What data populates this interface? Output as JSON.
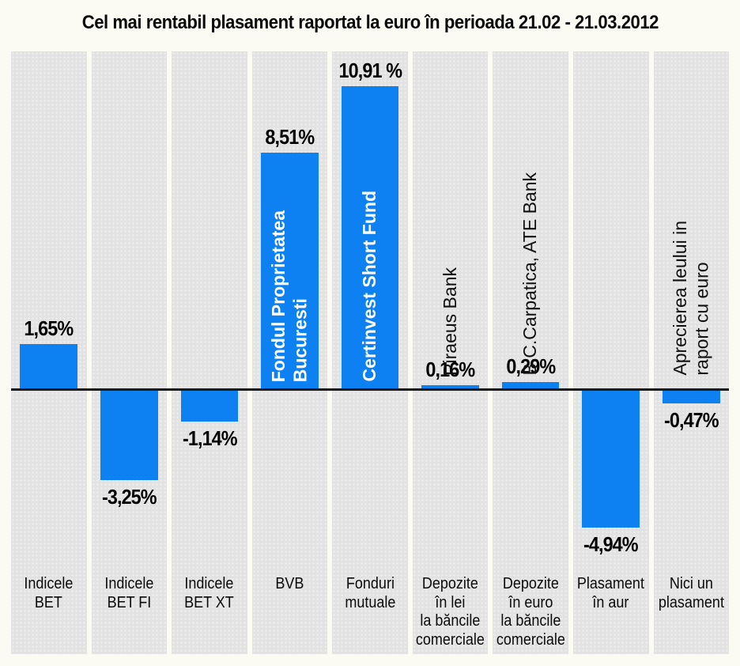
{
  "title": "Cel mai rentabil plasament raportat la euro în perioada 21.02 - 21.03.2012",
  "colors": {
    "bar": "#0d80f2",
    "column_background": "#e2e2e2",
    "axis_line": "#1b1b1b",
    "page_background": "#fbfbf4",
    "value_label_text": "#000000",
    "inside_bar_text": "#ffffff"
  },
  "chart_data": {
    "type": "bar",
    "title": "Cel mai rentabil plasament raportat la euro în perioada 21.02 - 21.03.2012",
    "xlabel": "",
    "ylabel": "",
    "ylim": [
      -5.5,
      11.5
    ],
    "grid": false,
    "legend": false,
    "baseline": 0,
    "unit": "%",
    "categories": [
      "Indicele BET",
      "Indicele BET FI",
      "Indicele BET XT",
      "BVB",
      "Fonduri mutuale",
      "Depozite în lei la băncile comerciale",
      "Depozite în euro la băncile comerciale",
      "Plasament în aur",
      "Nici un plasament"
    ],
    "values": [
      1.65,
      -3.25,
      -1.14,
      8.51,
      10.91,
      0.16,
      0.29,
      -4.94,
      -0.47
    ],
    "bars": [
      {
        "category": "Indicele\nBET",
        "value": 1.65,
        "value_label": "1,65%"
      },
      {
        "category": "Indicele\nBET FI",
        "value": -3.25,
        "value_label": "-3,25%"
      },
      {
        "category": "Indicele\nBET XT",
        "value": -1.14,
        "value_label": "-1,14%"
      },
      {
        "category": "BVB",
        "value": 8.51,
        "value_label": "8,51%",
        "annotation": "Fondul Proprietatea\nBucuresti",
        "annotation_style": "inside-bar-white"
      },
      {
        "category": "Fonduri\nmutuale",
        "value": 10.91,
        "value_label": "10,91 %",
        "annotation": "Certinvest Short Fund",
        "annotation_style": "inside-bar-white"
      },
      {
        "category": "Depozite\nîn lei\nla băncile\ncomerciale",
        "value": 0.16,
        "value_label": "0,16%",
        "annotation": "Piraeus Bank",
        "annotation_style": "above-bar-black"
      },
      {
        "category": "Depozite\nîn euro\nla băncile\ncomerciale",
        "value": 0.29,
        "value_label": "0,29%",
        "annotation": "B.C.Carpatica, ATE Bank",
        "annotation_style": "above-bar-black"
      },
      {
        "category": "Plasament\nîn aur",
        "value": -4.94,
        "value_label": "-4,94%"
      },
      {
        "category": "Nici un\nplasament",
        "value": -0.47,
        "value_label": "-0,47%",
        "annotation": "Aprecierea leului in\nraport cu euro",
        "annotation_style": "above-bar-black"
      }
    ]
  }
}
